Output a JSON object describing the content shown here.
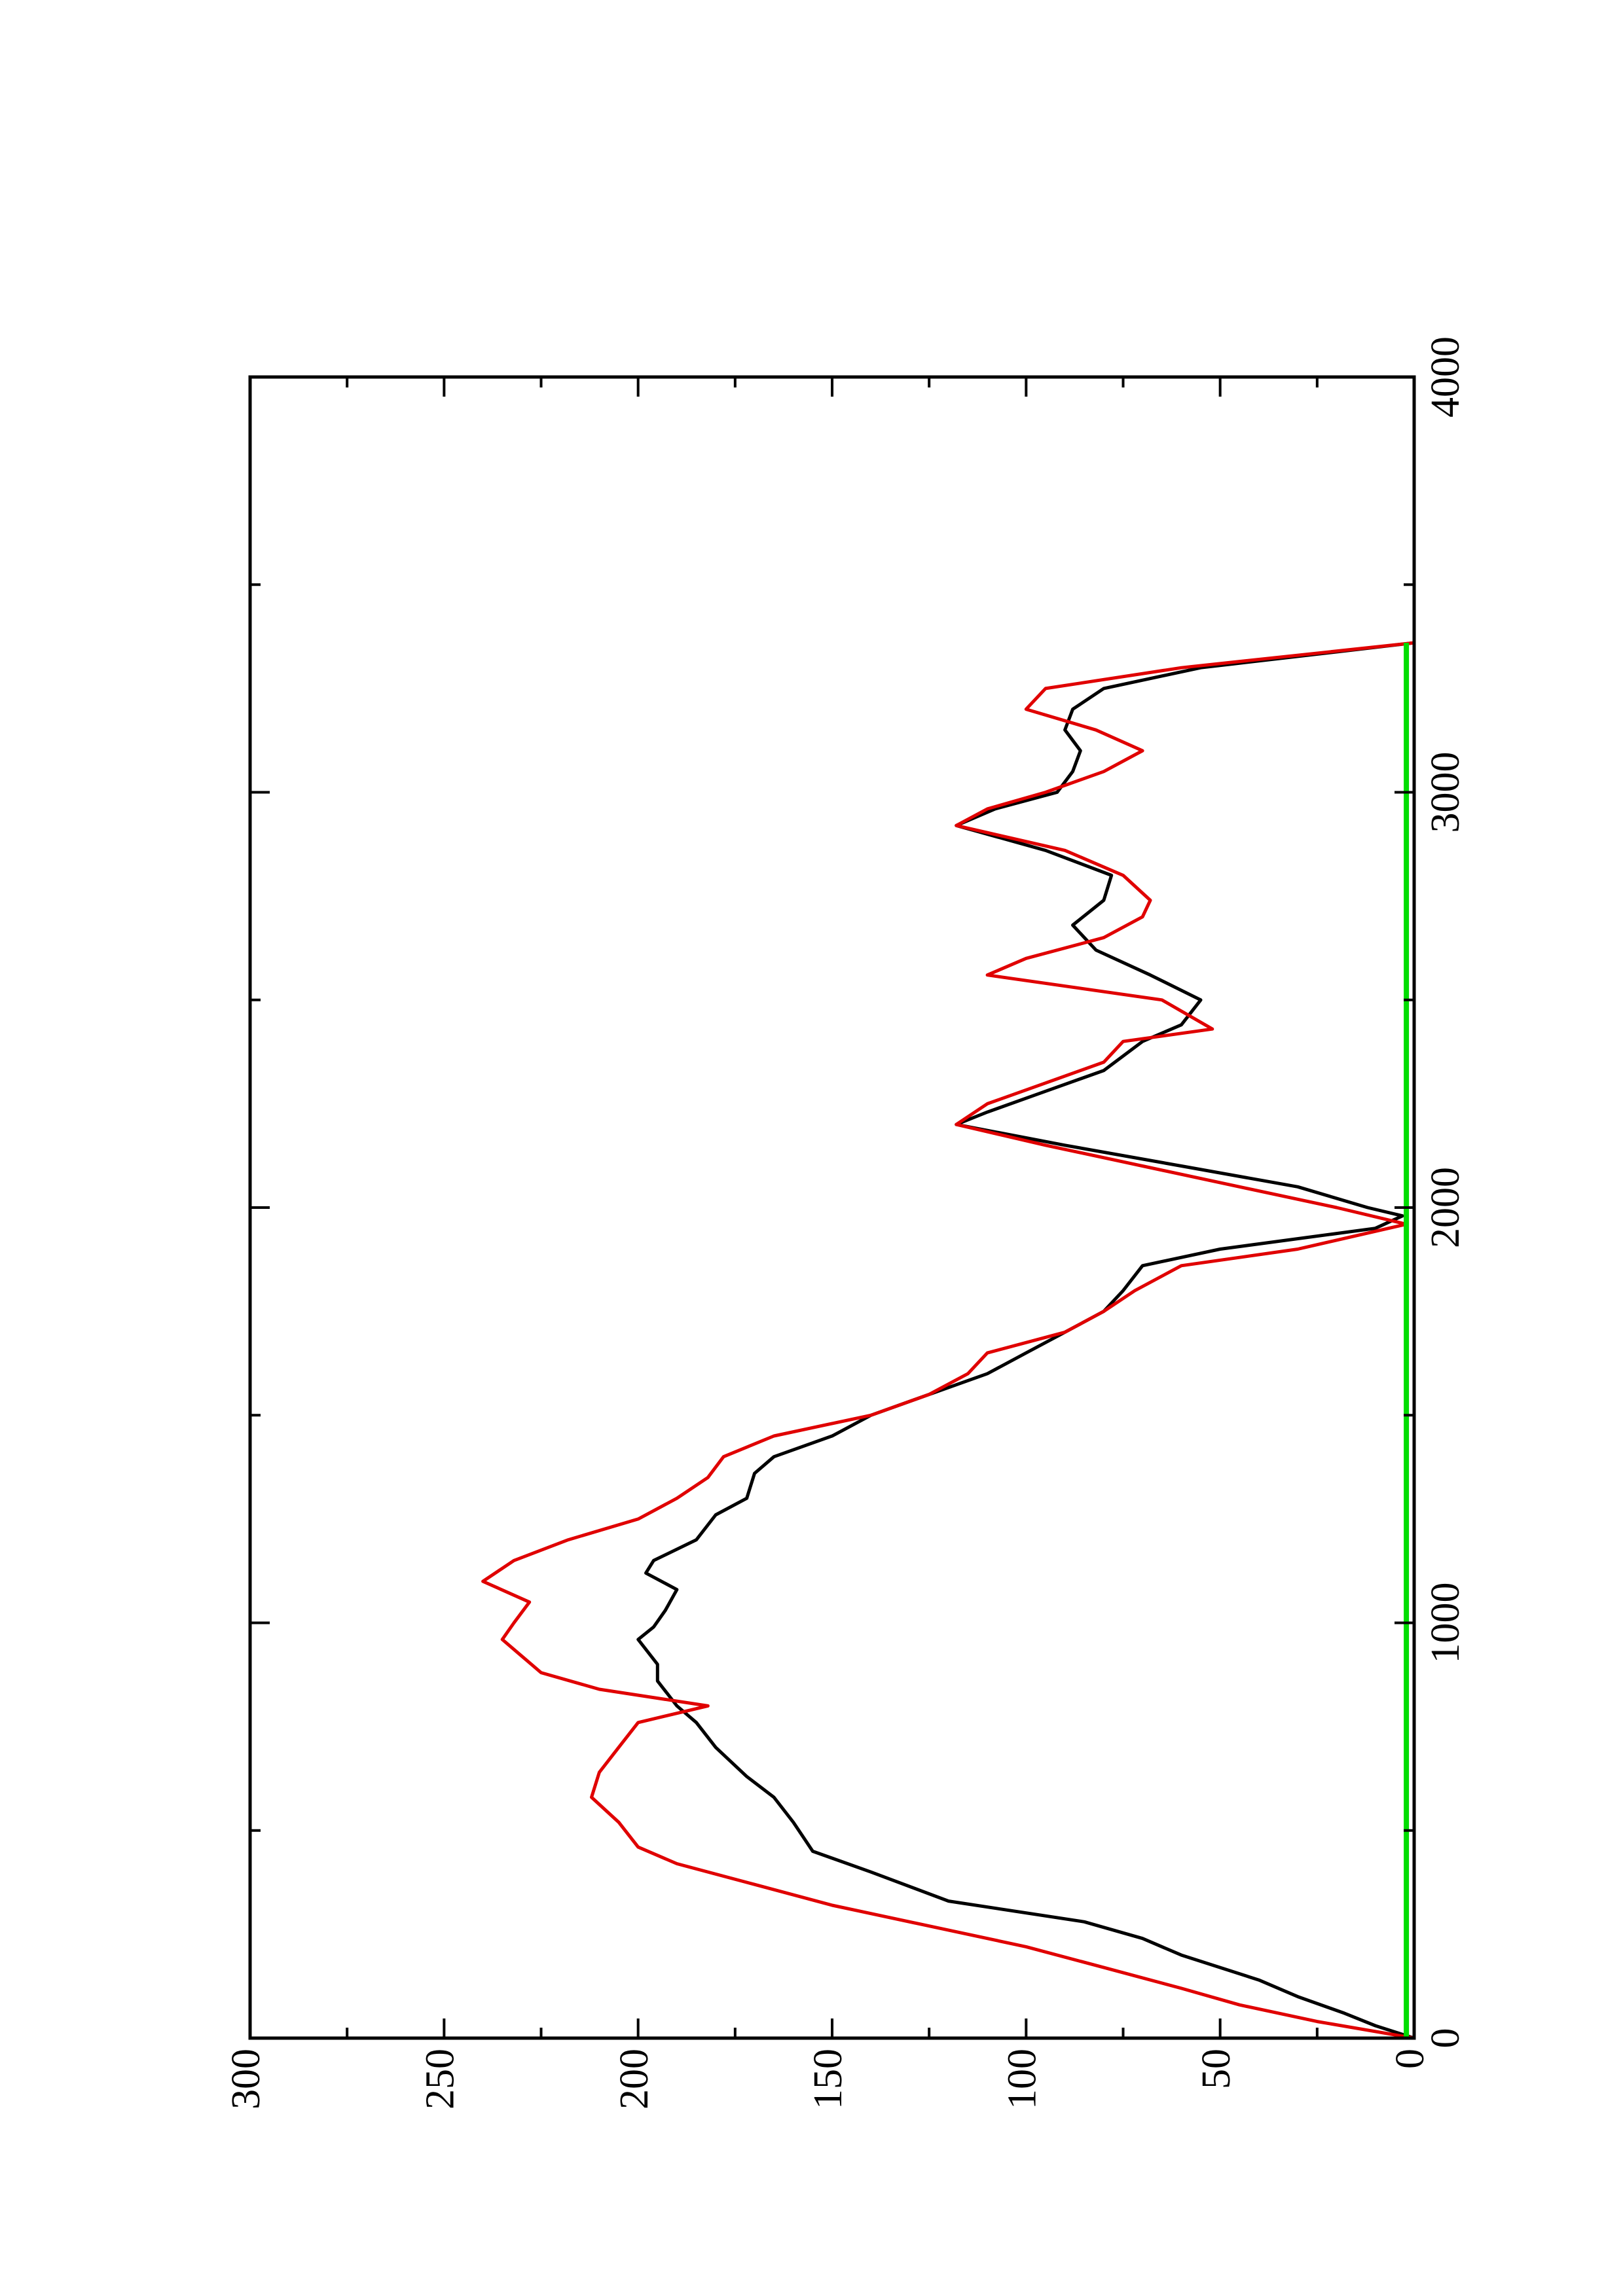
{
  "chart_data": {
    "type": "line",
    "orientation": "rotated-90-ccw",
    "title": "",
    "xlabel": "",
    "ylabel": "",
    "xlim": [
      0,
      4000
    ],
    "ylim": [
      0,
      300
    ],
    "x_ticks": [
      0,
      1000,
      2000,
      3000,
      4000
    ],
    "x_tick_labels": [
      "0",
      "1000",
      "2000",
      "3000",
      "4000"
    ],
    "y_ticks": [
      0,
      50,
      100,
      150,
      200,
      250,
      300
    ],
    "y_tick_labels": [
      "0",
      "50",
      "100",
      "150",
      "200",
      "250",
      "300"
    ],
    "grid": false,
    "legend": "none",
    "series": [
      {
        "color": "#000000",
        "points": [
          [
            0,
            0
          ],
          [
            30,
            10
          ],
          [
            60,
            18
          ],
          [
            100,
            30
          ],
          [
            140,
            40
          ],
          [
            200,
            60
          ],
          [
            240,
            70
          ],
          [
            280,
            85
          ],
          [
            330,
            120
          ],
          [
            400,
            140
          ],
          [
            450,
            155
          ],
          [
            520,
            160
          ],
          [
            580,
            165
          ],
          [
            630,
            172
          ],
          [
            700,
            180
          ],
          [
            760,
            185
          ],
          [
            800,
            190
          ],
          [
            860,
            195
          ],
          [
            900,
            195
          ],
          [
            960,
            200
          ],
          [
            990,
            196
          ],
          [
            1030,
            193
          ],
          [
            1080,
            190
          ],
          [
            1120,
            198
          ],
          [
            1150,
            196
          ],
          [
            1200,
            185
          ],
          [
            1260,
            180
          ],
          [
            1300,
            172
          ],
          [
            1360,
            170
          ],
          [
            1400,
            165
          ],
          [
            1450,
            150
          ],
          [
            1500,
            140
          ],
          [
            1550,
            125
          ],
          [
            1600,
            110
          ],
          [
            1650,
            100
          ],
          [
            1700,
            90
          ],
          [
            1750,
            80
          ],
          [
            1800,
            75
          ],
          [
            1860,
            70
          ],
          [
            1900,
            50
          ],
          [
            1950,
            10
          ],
          [
            1980,
            3
          ],
          [
            2000,
            12
          ],
          [
            2050,
            30
          ],
          [
            2100,
            60
          ],
          [
            2150,
            90
          ],
          [
            2200,
            118
          ],
          [
            2230,
            110
          ],
          [
            2280,
            95
          ],
          [
            2330,
            80
          ],
          [
            2400,
            70
          ],
          [
            2440,
            60
          ],
          [
            2500,
            55
          ],
          [
            2560,
            68
          ],
          [
            2620,
            82
          ],
          [
            2680,
            88
          ],
          [
            2740,
            80
          ],
          [
            2800,
            78
          ],
          [
            2860,
            95
          ],
          [
            2920,
            118
          ],
          [
            2960,
            108
          ],
          [
            3000,
            92
          ],
          [
            3050,
            88
          ],
          [
            3100,
            86
          ],
          [
            3150,
            90
          ],
          [
            3200,
            88
          ],
          [
            3250,
            80
          ],
          [
            3300,
            55
          ],
          [
            3360,
            0
          ]
        ]
      },
      {
        "color": "#e00000",
        "points": [
          [
            0,
            0
          ],
          [
            40,
            25
          ],
          [
            80,
            45
          ],
          [
            120,
            60
          ],
          [
            170,
            80
          ],
          [
            220,
            100
          ],
          [
            270,
            125
          ],
          [
            320,
            150
          ],
          [
            370,
            170
          ],
          [
            420,
            190
          ],
          [
            460,
            200
          ],
          [
            520,
            205
          ],
          [
            580,
            212
          ],
          [
            640,
            210
          ],
          [
            700,
            205
          ],
          [
            760,
            200
          ],
          [
            800,
            182
          ],
          [
            840,
            210
          ],
          [
            880,
            225
          ],
          [
            920,
            230
          ],
          [
            960,
            235
          ],
          [
            1000,
            232
          ],
          [
            1050,
            228
          ],
          [
            1100,
            240
          ],
          [
            1150,
            232
          ],
          [
            1200,
            218
          ],
          [
            1250,
            200
          ],
          [
            1300,
            190
          ],
          [
            1350,
            182
          ],
          [
            1400,
            178
          ],
          [
            1450,
            165
          ],
          [
            1500,
            140
          ],
          [
            1550,
            125
          ],
          [
            1600,
            115
          ],
          [
            1650,
            110
          ],
          [
            1700,
            90
          ],
          [
            1750,
            80
          ],
          [
            1800,
            72
          ],
          [
            1860,
            60
          ],
          [
            1900,
            30
          ],
          [
            1960,
            2
          ],
          [
            2000,
            20
          ],
          [
            2050,
            45
          ],
          [
            2100,
            70
          ],
          [
            2150,
            95
          ],
          [
            2200,
            118
          ],
          [
            2250,
            110
          ],
          [
            2300,
            95
          ],
          [
            2350,
            80
          ],
          [
            2400,
            75
          ],
          [
            2430,
            52
          ],
          [
            2500,
            65
          ],
          [
            2560,
            110
          ],
          [
            2600,
            100
          ],
          [
            2650,
            80
          ],
          [
            2700,
            70
          ],
          [
            2740,
            68
          ],
          [
            2800,
            75
          ],
          [
            2860,
            90
          ],
          [
            2920,
            118
          ],
          [
            2960,
            110
          ],
          [
            3000,
            95
          ],
          [
            3050,
            80
          ],
          [
            3100,
            70
          ],
          [
            3150,
            82
          ],
          [
            3200,
            100
          ],
          [
            3250,
            95
          ],
          [
            3300,
            60
          ],
          [
            3360,
            0
          ]
        ]
      },
      {
        "color": "#00dd00",
        "points": [
          [
            0,
            2
          ],
          [
            400,
            2
          ],
          [
            800,
            2
          ],
          [
            1200,
            2
          ],
          [
            1600,
            2
          ],
          [
            2000,
            2
          ],
          [
            2400,
            2
          ],
          [
            2800,
            2
          ],
          [
            3360,
            2
          ]
        ]
      }
    ]
  }
}
